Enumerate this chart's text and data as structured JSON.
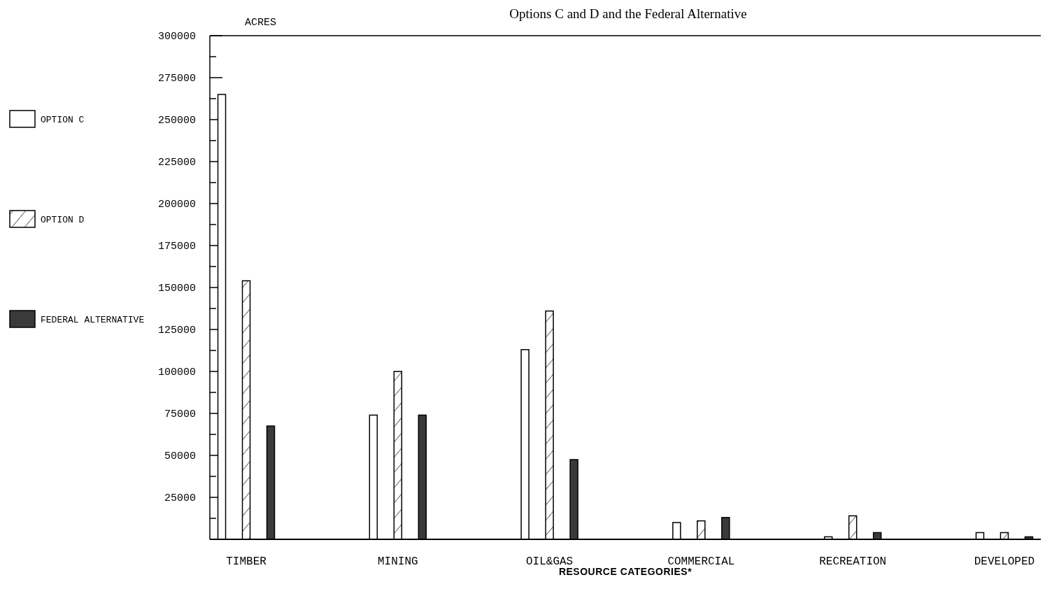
{
  "chart_data": {
    "type": "bar",
    "title": "Options C and D and the Federal Alternative",
    "xlabel": "RESOURCE CATEGORIES*",
    "ylabel": "ACRES",
    "categories": [
      "TIMBER",
      "MINING",
      "OIL&GAS",
      "COMMERCIAL",
      "RECREATION",
      "DEVELOPED"
    ],
    "series": [
      {
        "name": "OPTION C",
        "color": "#ffffff",
        "values": [
          265000,
          74000,
          113000,
          10000,
          1500,
          4000
        ]
      },
      {
        "name": "OPTION D",
        "color": "#ffffff",
        "values": [
          154000,
          100000,
          136000,
          11000,
          14000,
          4000
        ]
      },
      {
        "name": "FEDERAL ALTERNATIVE",
        "color": "#3a3a3a",
        "values": [
          67500,
          74000,
          47500,
          13000,
          4000,
          1500
        ]
      }
    ],
    "ylim": [
      0,
      300000
    ],
    "yticks": [
      {
        "value": 12500,
        "label": null
      },
      25000,
      {
        "value": 37500,
        "label": null
      },
      50000,
      {
        "value": 62500,
        "label": null
      },
      75000,
      {
        "value": 87500,
        "label": null
      },
      100000,
      {
        "value": 112500,
        "label": null
      },
      125000,
      {
        "value": 137500,
        "label": null
      },
      150000,
      {
        "value": 162500,
        "label": null
      },
      175000,
      {
        "value": 187500,
        "label": null
      },
      200000,
      {
        "value": 212500,
        "label": null
      },
      225000,
      {
        "value": 237500,
        "label": null
      },
      250000,
      {
        "value": 262500,
        "label": null
      },
      275000,
      {
        "value": 287500,
        "label": null
      },
      300000
    ],
    "legend": "left",
    "grid": false
  }
}
